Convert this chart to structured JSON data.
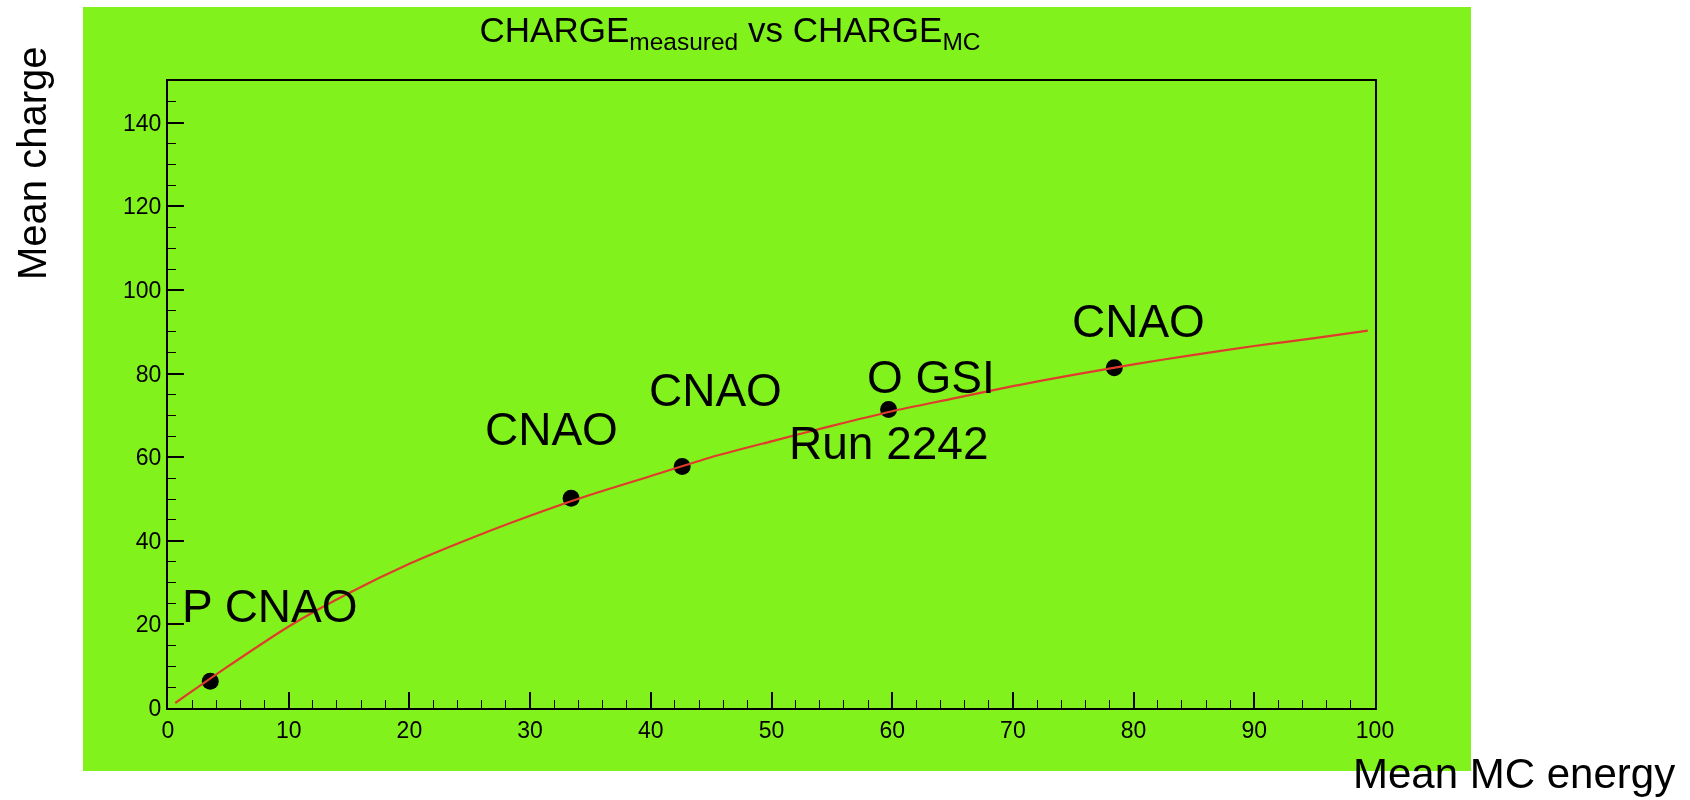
{
  "chart_data": {
    "type": "scatter",
    "title": "CHARGE$_{measured}$ vs CHARGE$_{MC}$",
    "xlabel": "Mean MC energy",
    "ylabel": "Mean charge",
    "series": [
      {
        "color": "#000000",
        "marker": "circle",
        "x": [
          3.5,
          33.4,
          42.6,
          59.7,
          78.4
        ],
        "values": [
          6.4,
          50.2,
          57.8,
          71.4,
          81.4
        ]
      },
      {
        "type": "line",
        "color": "#e03c2c",
        "marker": "none",
        "line_style": "solid",
        "x": [
          0.6,
          5,
          10,
          15,
          20,
          25,
          30,
          35,
          40,
          45,
          50,
          55,
          60,
          65,
          70,
          75,
          80,
          85,
          90,
          95,
          99.4
        ],
        "values": [
          1.2,
          10,
          19.5,
          27.5,
          34.5,
          40.5,
          46,
          51,
          55.5,
          60,
          63.8,
          67.5,
          71,
          74,
          77,
          79.7,
          82.2,
          84.5,
          86.6,
          88.5,
          90.3
        ]
      }
    ],
    "xlim": [
      0,
      100
    ],
    "xticks": [
      0,
      {
        "value": 2,
        "label": null
      },
      {
        "value": 4,
        "label": null
      },
      {
        "value": 6,
        "label": null
      },
      {
        "value": 8,
        "label": null
      },
      10,
      {
        "value": 12,
        "label": null
      },
      {
        "value": 14,
        "label": null
      },
      {
        "value": 16,
        "label": null
      },
      {
        "value": 18,
        "label": null
      },
      20,
      {
        "value": 22,
        "label": null
      },
      {
        "value": 24,
        "label": null
      },
      {
        "value": 26,
        "label": null
      },
      {
        "value": 28,
        "label": null
      },
      30,
      {
        "value": 32,
        "label": null
      },
      {
        "value": 34,
        "label": null
      },
      {
        "value": 36,
        "label": null
      },
      {
        "value": 38,
        "label": null
      },
      40,
      {
        "value": 42,
        "label": null
      },
      {
        "value": 44,
        "label": null
      },
      {
        "value": 46,
        "label": null
      },
      {
        "value": 48,
        "label": null
      },
      50,
      {
        "value": 52,
        "label": null
      },
      {
        "value": 54,
        "label": null
      },
      {
        "value": 56,
        "label": null
      },
      {
        "value": 58,
        "label": null
      },
      60,
      {
        "value": 62,
        "label": null
      },
      {
        "value": 64,
        "label": null
      },
      {
        "value": 66,
        "label": null
      },
      {
        "value": 68,
        "label": null
      },
      70,
      {
        "value": 72,
        "label": null
      },
      {
        "value": 74,
        "label": null
      },
      {
        "value": 76,
        "label": null
      },
      {
        "value": 78,
        "label": null
      },
      80,
      {
        "value": 82,
        "label": null
      },
      {
        "value": 84,
        "label": null
      },
      {
        "value": 86,
        "label": null
      },
      {
        "value": 88,
        "label": null
      },
      90,
      {
        "value": 92,
        "label": null
      },
      {
        "value": 94,
        "label": null
      },
      {
        "value": 96,
        "label": null
      },
      {
        "value": 98,
        "label": null
      },
      100
    ],
    "ylim": [
      0,
      150
    ],
    "yticks": [
      0,
      {
        "value": 5,
        "label": null
      },
      {
        "value": 10,
        "label": null
      },
      {
        "value": 15,
        "label": null
      },
      20,
      {
        "value": 25,
        "label": null
      },
      {
        "value": 30,
        "label": null
      },
      {
        "value": 35,
        "label": null
      },
      40,
      {
        "value": 45,
        "label": null
      },
      {
        "value": 50,
        "label": null
      },
      {
        "value": 55,
        "label": null
      },
      60,
      {
        "value": 65,
        "label": null
      },
      {
        "value": 70,
        "label": null
      },
      {
        "value": 75,
        "label": null
      },
      80,
      {
        "value": 85,
        "label": null
      },
      {
        "value": 90,
        "label": null
      },
      {
        "value": 95,
        "label": null
      },
      100,
      {
        "value": 105,
        "label": null
      },
      {
        "value": 110,
        "label": null
      },
      {
        "value": 115,
        "label": null
      },
      120,
      {
        "value": 125,
        "label": null
      },
      {
        "value": 130,
        "label": null
      },
      {
        "value": 135,
        "label": null
      },
      140,
      {
        "value": 145,
        "label": null
      }
    ],
    "annotations": [
      {
        "text": "P CNAO",
        "x": 3.5,
        "y": 6.4
      },
      {
        "text": "CNAO",
        "x": 33.4,
        "y": 50.2
      },
      {
        "text": "CNAO",
        "x": 42.6,
        "y": 57.8
      },
      {
        "text": "O GSI",
        "x": 59.7,
        "y": 71.4
      },
      {
        "text": "Run 2242",
        "x": 59.7,
        "y": 71.4
      },
      {
        "text": "CNAO",
        "x": 78.4,
        "y": 81.4
      }
    ]
  }
}
